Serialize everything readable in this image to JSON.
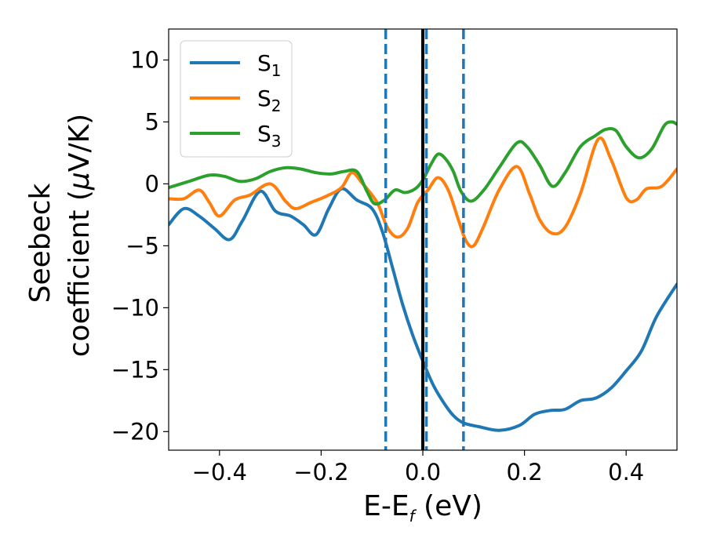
{
  "chart_data": {
    "type": "line",
    "xlabel": {
      "base": "E-E",
      "sub": "f",
      "tail": " (eV)"
    },
    "ylabel": {
      "line1": "Seebeck",
      "line2_pre": "coefficient  (",
      "mu": "μ",
      "line2_post": "V/K)"
    },
    "xlim": [
      -0.5,
      0.5
    ],
    "ylim": [
      -21.5,
      12.5
    ],
    "x_ticks": [
      -0.4,
      -0.2,
      0.0,
      0.2,
      0.4
    ],
    "x_tick_labels": [
      "−0.4",
      "−0.2",
      "0.0",
      "0.2",
      "0.4"
    ],
    "y_ticks": [
      10,
      5,
      0,
      -5,
      -10,
      -15,
      -20
    ],
    "y_tick_labels": [
      "10",
      "5",
      "0",
      "−5",
      "−10",
      "−15",
      "−20"
    ],
    "grid": false,
    "legend_position": "top-left",
    "vlines": [
      {
        "x": -0.073,
        "style": "dashed",
        "color": "#1f77b4"
      },
      {
        "x": 0.007,
        "style": "dashed",
        "color": "#1f77b4"
      },
      {
        "x": 0.08,
        "style": "dashed",
        "color": "#1f77b4"
      },
      {
        "x": 0.0,
        "style": "solid",
        "color": "#000000"
      }
    ],
    "series": [
      {
        "name": "S",
        "sub": "1",
        "color": "#1f77b4",
        "points": [
          [
            -0.5,
            -3.3
          ],
          [
            -0.47,
            -2.0
          ],
          [
            -0.44,
            -2.6
          ],
          [
            -0.41,
            -3.6
          ],
          [
            -0.38,
            -4.5
          ],
          [
            -0.355,
            -3.0
          ],
          [
            -0.32,
            -0.6
          ],
          [
            -0.29,
            -2.2
          ],
          [
            -0.26,
            -2.6
          ],
          [
            -0.235,
            -3.3
          ],
          [
            -0.21,
            -4.1
          ],
          [
            -0.185,
            -2.0
          ],
          [
            -0.16,
            -0.4
          ],
          [
            -0.13,
            -1.3
          ],
          [
            -0.1,
            -2.0
          ],
          [
            -0.08,
            -3.8
          ],
          [
            -0.06,
            -6.7
          ],
          [
            -0.04,
            -9.7
          ],
          [
            -0.02,
            -12.2
          ],
          [
            0.0,
            -14.3
          ],
          [
            0.02,
            -16.2
          ],
          [
            0.04,
            -17.6
          ],
          [
            0.06,
            -18.7
          ],
          [
            0.08,
            -19.3
          ],
          [
            0.11,
            -19.6
          ],
          [
            0.15,
            -19.9
          ],
          [
            0.19,
            -19.5
          ],
          [
            0.22,
            -18.6
          ],
          [
            0.25,
            -18.3
          ],
          [
            0.28,
            -18.2
          ],
          [
            0.31,
            -17.5
          ],
          [
            0.34,
            -17.3
          ],
          [
            0.37,
            -16.5
          ],
          [
            0.4,
            -15.1
          ],
          [
            0.43,
            -13.5
          ],
          [
            0.46,
            -10.7
          ],
          [
            0.5,
            -8.1
          ]
        ]
      },
      {
        "name": "S",
        "sub": "2",
        "color": "#ff7f0e",
        "points": [
          [
            -0.5,
            -1.2
          ],
          [
            -0.47,
            -1.2
          ],
          [
            -0.44,
            -0.5
          ],
          [
            -0.42,
            -1.5
          ],
          [
            -0.4,
            -2.6
          ],
          [
            -0.37,
            -1.3
          ],
          [
            -0.34,
            -0.9
          ],
          [
            -0.3,
            0.0
          ],
          [
            -0.27,
            -1.4
          ],
          [
            -0.25,
            -2.0
          ],
          [
            -0.22,
            -1.5
          ],
          [
            -0.19,
            -1.0
          ],
          [
            -0.16,
            -0.3
          ],
          [
            -0.14,
            0.9
          ],
          [
            -0.12,
            0.1
          ],
          [
            -0.09,
            -1.5
          ],
          [
            -0.07,
            -3.5
          ],
          [
            -0.05,
            -4.3
          ],
          [
            -0.03,
            -3.6
          ],
          [
            -0.01,
            -1.5
          ],
          [
            0.01,
            -0.5
          ],
          [
            0.03,
            0.5
          ],
          [
            0.05,
            -0.5
          ],
          [
            0.07,
            -2.9
          ],
          [
            0.085,
            -4.6
          ],
          [
            0.1,
            -5.0
          ],
          [
            0.12,
            -3.4
          ],
          [
            0.15,
            -0.5
          ],
          [
            0.185,
            1.4
          ],
          [
            0.21,
            -0.8
          ],
          [
            0.23,
            -2.9
          ],
          [
            0.255,
            -4.0
          ],
          [
            0.28,
            -3.5
          ],
          [
            0.31,
            -0.8
          ],
          [
            0.345,
            3.6
          ],
          [
            0.37,
            2.0
          ],
          [
            0.4,
            -1.1
          ],
          [
            0.42,
            -1.3
          ],
          [
            0.44,
            -0.4
          ],
          [
            0.47,
            -0.2
          ],
          [
            0.5,
            1.2
          ]
        ]
      },
      {
        "name": "S",
        "sub": "3",
        "color": "#2ca02c",
        "points": [
          [
            -0.5,
            -0.3
          ],
          [
            -0.46,
            0.2
          ],
          [
            -0.42,
            0.7
          ],
          [
            -0.39,
            0.6
          ],
          [
            -0.36,
            0.2
          ],
          [
            -0.33,
            0.4
          ],
          [
            -0.3,
            1.0
          ],
          [
            -0.27,
            1.3
          ],
          [
            -0.24,
            1.2
          ],
          [
            -0.21,
            0.9
          ],
          [
            -0.18,
            0.8
          ],
          [
            -0.155,
            1.0
          ],
          [
            -0.13,
            1.0
          ],
          [
            -0.11,
            -0.6
          ],
          [
            -0.095,
            -1.6
          ],
          [
            -0.075,
            -1.3
          ],
          [
            -0.055,
            -0.5
          ],
          [
            -0.035,
            -0.7
          ],
          [
            -0.015,
            -0.4
          ],
          [
            0.0,
            0.3
          ],
          [
            0.015,
            1.5
          ],
          [
            0.03,
            2.4
          ],
          [
            0.045,
            2.0
          ],
          [
            0.06,
            1.0
          ],
          [
            0.075,
            -0.6
          ],
          [
            0.095,
            -1.4
          ],
          [
            0.12,
            -0.5
          ],
          [
            0.15,
            1.3
          ],
          [
            0.185,
            3.3
          ],
          [
            0.205,
            3.0
          ],
          [
            0.23,
            1.5
          ],
          [
            0.255,
            -0.2
          ],
          [
            0.28,
            0.9
          ],
          [
            0.31,
            3.0
          ],
          [
            0.34,
            3.9
          ],
          [
            0.36,
            4.4
          ],
          [
            0.38,
            4.3
          ],
          [
            0.4,
            3.0
          ],
          [
            0.425,
            2.1
          ],
          [
            0.45,
            2.8
          ],
          [
            0.475,
            4.7
          ],
          [
            0.49,
            5.0
          ],
          [
            0.5,
            4.8
          ]
        ]
      }
    ]
  }
}
